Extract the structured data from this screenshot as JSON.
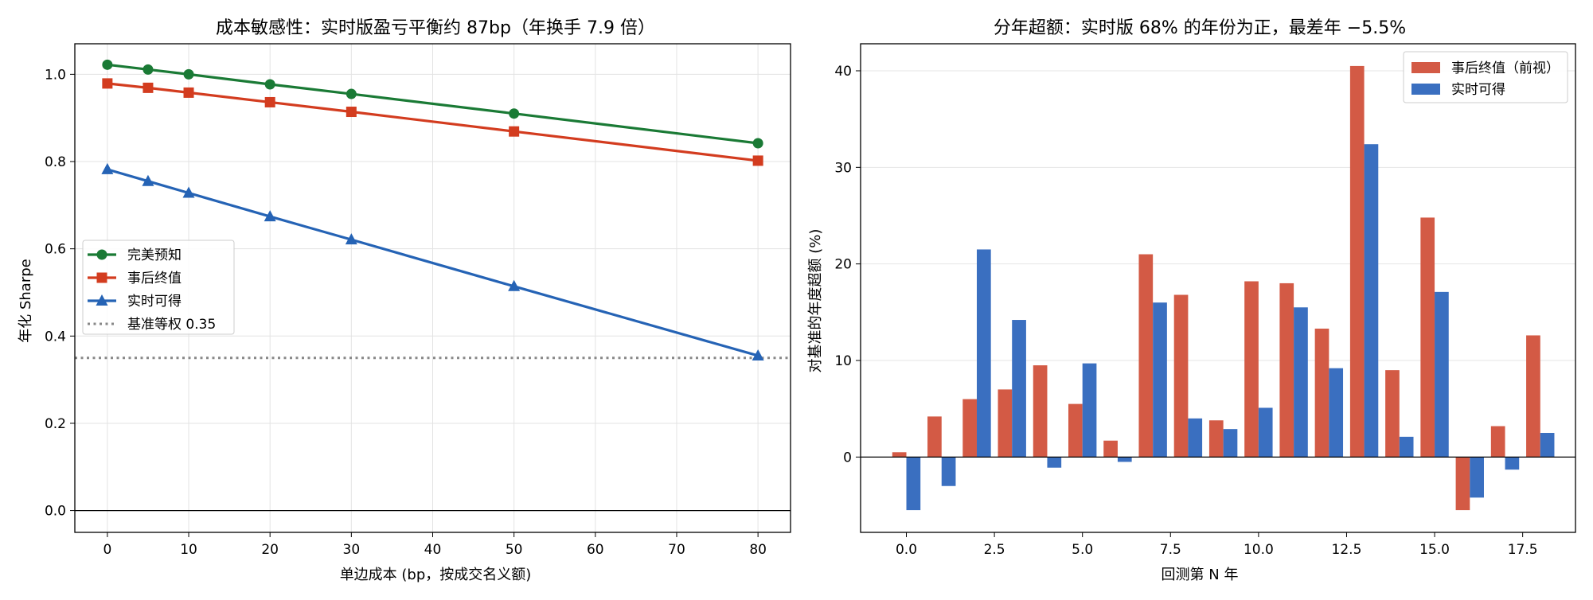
{
  "chart_data": [
    {
      "type": "line",
      "title": "成本敏感性：实时版盈亏平衡约 87bp（年换手 7.9 倍）",
      "xlabel": "单边成本 (bp，按成交名义额)",
      "ylabel": "年化 Sharpe",
      "xlim": [
        -4,
        84
      ],
      "ylim": [
        -0.05,
        1.07
      ],
      "xticks": [
        0,
        10,
        20,
        30,
        40,
        50,
        60,
        70,
        80
      ],
      "yticks": [
        0.0,
        0.2,
        0.4,
        0.6,
        0.8,
        1.0
      ],
      "ytick_labels": [
        "0.0",
        "0.2",
        "0.4",
        "0.6",
        "0.8",
        "1.0"
      ],
      "grid": true,
      "legend_position": "center-left",
      "x": [
        0,
        5,
        10,
        20,
        30,
        50,
        80
      ],
      "series": [
        {
          "name": "完美预知",
          "values": [
            1.022,
            1.011,
            1.0,
            0.977,
            0.955,
            0.91,
            0.842
          ],
          "color": "#1a7a35",
          "marker": "circle"
        },
        {
          "name": "事后终值",
          "values": [
            0.979,
            0.969,
            0.958,
            0.936,
            0.914,
            0.869,
            0.802
          ],
          "color": "#d33c1f",
          "marker": "square"
        },
        {
          "name": "实时可得",
          "values": [
            0.782,
            0.755,
            0.728,
            0.674,
            0.621,
            0.514,
            0.355
          ],
          "color": "#2563b5",
          "marker": "triangle"
        }
      ],
      "reference_line": {
        "name": "基准等权 0.35",
        "value": 0.35,
        "color": "#888888",
        "style": "dotted"
      },
      "zero_line": 0
    },
    {
      "type": "bar",
      "title": "分年超额：实时版 68% 的年份为正，最差年 −5.5%",
      "xlabel": "回测第 N 年",
      "ylabel": "对基准的年度超额 (%)",
      "xlim": [
        -1.3,
        19.0
      ],
      "ylim": [
        -7.8,
        42.8
      ],
      "xticks": [
        0.0,
        2.5,
        5.0,
        7.5,
        10.0,
        12.5,
        15.0,
        17.5
      ],
      "xtick_labels": [
        "0.0",
        "2.5",
        "5.0",
        "7.5",
        "10.0",
        "12.5",
        "15.0",
        "17.5"
      ],
      "yticks": [
        0,
        10,
        20,
        30,
        40
      ],
      "grid": true,
      "legend_position": "top-right",
      "categories": [
        0,
        1,
        2,
        3,
        4,
        5,
        6,
        7,
        8,
        9,
        10,
        11,
        12,
        13,
        14,
        15,
        16,
        17,
        18
      ],
      "bar_width": 0.4,
      "series": [
        {
          "name": "事后终值（前视）",
          "color": "#d35a45",
          "values": [
            0.5,
            4.2,
            6.0,
            7.0,
            9.5,
            5.5,
            1.7,
            21.0,
            16.8,
            3.8,
            18.2,
            18.0,
            13.3,
            40.5,
            9.0,
            24.8,
            -5.5,
            3.2,
            12.6
          ]
        },
        {
          "name": "实时可得",
          "color": "#3a6fc0",
          "values": [
            -5.5,
            -3.0,
            21.5,
            14.2,
            -1.1,
            9.7,
            -0.5,
            16.0,
            4.0,
            2.9,
            5.1,
            15.5,
            9.2,
            32.4,
            2.1,
            17.1,
            -4.2,
            -1.3,
            2.5
          ]
        }
      ],
      "zero_line": 0
    }
  ]
}
